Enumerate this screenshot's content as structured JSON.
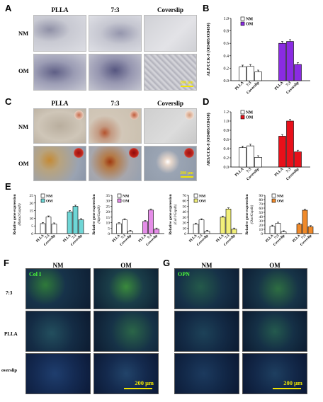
{
  "panel_labels": {
    "a": "A",
    "b": "B",
    "c": "C",
    "d": "D",
    "e": "E",
    "f": "F",
    "g": "G"
  },
  "panel_a": {
    "columns": [
      "PLLA",
      "7:3",
      "Coverslip"
    ],
    "rows": [
      "NM",
      "OM"
    ],
    "scale_bar": "200 μm"
  },
  "panel_c": {
    "columns": [
      "PLLA",
      "7:3",
      "Coverslip"
    ],
    "rows": [
      "NM",
      "OM"
    ],
    "scale_bar": "200 μm"
  },
  "panel_f": {
    "stain": "Col I",
    "columns": [
      "NM",
      "OM"
    ],
    "rows": [
      "7:3",
      "PLLA",
      "overslip"
    ],
    "scale_bar": "200 μm"
  },
  "panel_g": {
    "stain": "OPN",
    "columns": [
      "NM",
      "OM"
    ],
    "scale_bar": "200 μm"
  },
  "colors": {
    "nm": "#ffffff",
    "b_om": "#8a2be2",
    "d_om": "#e8101a",
    "e1_om": "#6fd6d6",
    "e2_om": "#e58de8",
    "e3_om": "#f2ef7a",
    "e4_om": "#f08a2a"
  },
  "chart_data": [
    {
      "type": "bar",
      "panel": "B",
      "ylabel": "ALP/CCK-8 (OD405/OD450)",
      "ylim": [
        0,
        1.0
      ],
      "yticks": [
        "0.0",
        "0.2",
        "0.4",
        "0.6",
        "0.8",
        "1.0"
      ],
      "categories": [
        "PLLA",
        "7:3",
        "Coverslip"
      ],
      "series": [
        {
          "name": "NM",
          "values": [
            0.22,
            0.23,
            0.14
          ]
        },
        {
          "name": "OM",
          "values": [
            0.6,
            0.63,
            0.26
          ]
        }
      ],
      "annotations": [
        "**",
        "**"
      ]
    },
    {
      "type": "bar",
      "panel": "D",
      "ylabel": "ARS/CCK-8 (OD405/OD450)",
      "ylim": [
        0,
        1.2
      ],
      "yticks": [
        "0.0",
        "0.2",
        "0.4",
        "0.6",
        "0.8",
        "1.0",
        "1.2"
      ],
      "categories": [
        "PLLA",
        "7:3",
        "Coverslip"
      ],
      "series": [
        {
          "name": "NM",
          "values": [
            0.42,
            0.46,
            0.21
          ]
        },
        {
          "name": "OM",
          "values": [
            0.67,
            1.0,
            0.33
          ]
        }
      ],
      "annotations": [
        "*",
        "**",
        "**",
        "**"
      ]
    },
    {
      "type": "bar",
      "panel": "E1",
      "ylabel": "Relative gene expression",
      "ygene": "(Runx2/Gapdh)",
      "ylim": [
        0,
        25
      ],
      "yticks": [
        "0",
        "5",
        "10",
        "15",
        "20",
        "25"
      ],
      "categories": [
        "PLLA",
        "7:3",
        "Coverslip"
      ],
      "series": [
        {
          "name": "NM",
          "values": [
            6.5,
            10.8,
            6.2
          ]
        },
        {
          "name": "OM",
          "values": [
            14.2,
            17.8,
            9.0
          ]
        }
      ]
    },
    {
      "type": "bar",
      "panel": "E2",
      "ylabel": "Relative gene expression",
      "ygene": "(Alp/Gapdh)",
      "ylim": [
        0,
        35
      ],
      "yticks": [
        "0",
        "5",
        "10",
        "15",
        "20",
        "25",
        "30",
        "35"
      ],
      "categories": [
        "PLLA",
        "7:3",
        "Coverslip"
      ],
      "series": [
        {
          "name": "NM",
          "values": [
            9,
            12.5,
            2
          ]
        },
        {
          "name": "OM",
          "values": [
            11,
            21.5,
            4
          ]
        }
      ]
    },
    {
      "type": "bar",
      "panel": "E3",
      "ylabel": "Relative gene expression",
      "ygene": "(Col I/Gapdh)",
      "ylim": [
        0,
        70
      ],
      "yticks": [
        "0",
        "10",
        "20",
        "30",
        "40",
        "50",
        "60",
        "70"
      ],
      "categories": [
        "PLLA",
        "7:3",
        "Coverslip"
      ],
      "series": [
        {
          "name": "NM",
          "values": [
            17,
            25,
            4
          ]
        },
        {
          "name": "OM",
          "values": [
            30,
            45,
            8
          ]
        }
      ]
    },
    {
      "type": "bar",
      "panel": "E4",
      "ylabel": "Relative gene expression",
      "ygene": "(Ocn/Gapdh)",
      "ylim": [
        0,
        90
      ],
      "yticks": [
        "0",
        "10",
        "20",
        "30",
        "40",
        "50",
        "60",
        "70",
        "80",
        "90"
      ],
      "categories": [
        "PLLA",
        "7:3",
        "Coverslip"
      ],
      "series": [
        {
          "name": "NM",
          "values": [
            17,
            24,
            4
          ]
        },
        {
          "name": "OM",
          "values": [
            22,
            55,
            16
          ]
        }
      ]
    }
  ]
}
